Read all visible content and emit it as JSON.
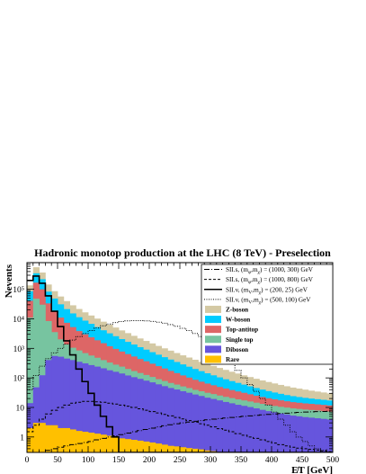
{
  "chart_data": {
    "type": "area",
    "title": "Hadronic monotop production at the LHC (8 TeV) - Preselection",
    "xlabel": "E̸T [GeV]",
    "ylabel": "Nevents",
    "xlim": [
      0,
      500
    ],
    "ylim": [
      0.3,
      800000
    ],
    "yscale": "log",
    "x_ticks": [
      "0",
      "50",
      "100",
      "150",
      "200",
      "250",
      "300",
      "350",
      "400",
      "450",
      "500"
    ],
    "y_ticks": [
      "1",
      "10",
      "10²",
      "10³",
      "10⁴",
      "10⁵"
    ],
    "bin_edges": [
      0,
      10,
      20,
      30,
      40,
      50,
      60,
      70,
      80,
      90,
      100,
      110,
      120,
      130,
      140,
      150,
      160,
      170,
      180,
      190,
      200,
      210,
      220,
      230,
      240,
      250,
      260,
      270,
      280,
      290,
      300,
      310,
      320,
      330,
      340,
      350,
      360,
      370,
      380,
      390,
      400,
      410,
      420,
      430,
      440,
      450,
      460,
      470,
      480,
      490,
      500
    ],
    "stacked_series": [
      {
        "name": "Rare",
        "color": "#ffc000",
        "values": [
          2,
          3,
          3,
          2.5,
          2.5,
          2,
          2,
          1.8,
          1.6,
          1.5,
          1.4,
          1.3,
          1.2,
          1.1,
          1.0,
          0.9,
          0.85,
          0.8,
          0.75,
          0.7,
          0.65,
          0.6,
          0.55,
          0.5,
          0.48,
          0.45,
          0.42,
          0.4,
          0.38,
          0.35,
          0.33,
          0.31,
          0.3,
          0.3,
          0.3,
          0.3,
          0.3,
          0.3,
          0.3,
          0.3,
          0.3,
          0.3,
          0.3,
          0.3,
          0.3,
          0.3,
          0.3,
          0.3,
          0.3,
          0.3
        ]
      },
      {
        "name": "Diboson",
        "color": "#6655dd",
        "values": [
          12,
          45,
          120,
          400,
          550,
          520,
          450,
          400,
          350,
          310,
          270,
          240,
          210,
          180,
          160,
          140,
          120,
          105,
          92,
          80,
          70,
          60,
          52,
          45,
          40,
          35,
          31,
          27,
          24,
          21,
          19,
          17,
          15,
          13.5,
          12,
          11,
          10,
          9,
          8,
          7.2,
          6.5,
          6,
          5.5,
          5,
          4.7,
          4.4,
          4.2,
          4,
          3.8,
          3.6
        ]
      },
      {
        "name": "Single top",
        "color": "#77c4a0",
        "values": [
          11000,
          48000,
          30000,
          8000,
          3000,
          1500,
          900,
          650,
          500,
          380,
          300,
          240,
          190,
          150,
          120,
          100,
          80,
          65,
          54,
          45,
          37,
          30,
          26,
          22,
          19,
          16,
          14,
          12,
          11,
          10,
          9,
          8,
          7.5,
          7,
          6.5,
          6,
          5.6,
          5.2,
          4.9,
          4.6,
          4.4,
          4.2,
          4.1,
          4,
          3.9,
          3.8,
          3.7,
          3.6,
          3.5,
          3.4
        ]
      },
      {
        "name": "Top-antitop",
        "color": "#dd6666",
        "values": [
          30000,
          120000,
          70000,
          25000,
          15000,
          9000,
          6000,
          4200,
          3000,
          2300,
          1800,
          1400,
          1100,
          850,
          680,
          540,
          440,
          360,
          290,
          240,
          195,
          160,
          130,
          105,
          86,
          70,
          57,
          47,
          39,
          33,
          28,
          24,
          21,
          18,
          16,
          14,
          12,
          10.5,
          9.4,
          8.4,
          7.6,
          6.9,
          6.3,
          5.8,
          5.5,
          5.2,
          5,
          4.8,
          4.6,
          4.4
        ]
      },
      {
        "name": "W-boson",
        "color": "#00ccff",
        "values": [
          45000,
          180000,
          120000,
          50000,
          30000,
          20000,
          14000,
          10000,
          7500,
          5700,
          4400,
          3400,
          2600,
          2050,
          1620,
          1280,
          1020,
          820,
          660,
          540,
          440,
          360,
          295,
          245,
          200,
          165,
          137,
          114,
          95,
          79,
          66,
          55,
          46,
          39,
          33,
          28,
          24,
          20.5,
          17.6,
          15.2,
          13.2,
          11.5,
          10,
          9,
          8.1,
          7.4,
          6.8,
          6.3,
          5.9,
          5.5
        ]
      },
      {
        "name": "Z-boson",
        "color": "#d4c9a4",
        "values": [
          50000,
          210000,
          150000,
          62000,
          38000,
          26000,
          18500,
          13500,
          10200,
          7900,
          6200,
          4900,
          3900,
          3100,
          2500,
          2000,
          1620,
          1310,
          1070,
          880,
          730,
          600,
          500,
          420,
          350,
          295,
          250,
          212,
          180,
          154,
          132,
          113,
          97,
          84,
          73,
          63,
          55,
          48,
          42,
          37,
          33,
          29,
          26,
          23,
          21,
          19,
          17,
          15.5,
          14,
          12.5
        ]
      }
    ],
    "signal_series": [
      {
        "name": "SII.s, (m_φ,m_χ) = (1000, 300) GeV",
        "style": "dashdot",
        "values": [
          0.3,
          0.3,
          0.3,
          0.35,
          0.4,
          0.45,
          0.5,
          0.55,
          0.6,
          0.65,
          0.7,
          0.8,
          0.9,
          1.0,
          1.1,
          1.2,
          1.35,
          1.5,
          1.65,
          1.8,
          2.0,
          2.2,
          2.4,
          2.6,
          2.8,
          3.0,
          3.2,
          3.4,
          3.6,
          3.8,
          4.0,
          4.2,
          4.4,
          4.6,
          4.8,
          5.0,
          5.2,
          5.4,
          5.6,
          5.8,
          6.0,
          6.2,
          6.4,
          6.6,
          6.8,
          7.0,
          7.1,
          7.2,
          7.3,
          7.4
        ]
      },
      {
        "name": "SII.s, (m_φ,m_χ) = (1000, 800) GeV",
        "style": "dashed",
        "values": [
          1.5,
          2.5,
          4,
          6,
          8,
          10,
          12,
          14,
          15,
          16,
          16,
          15.5,
          15,
          14,
          13,
          12,
          11,
          10,
          9,
          8,
          7.2,
          6.5,
          5.8,
          5.2,
          4.6,
          4.1,
          3.6,
          3.2,
          2.8,
          2.5,
          2.2,
          1.9,
          1.7,
          1.5,
          1.3,
          1.15,
          1.0,
          0.9,
          0.8,
          0.7,
          0.62,
          0.55,
          0.5,
          0.45,
          0.42,
          0.4,
          0.38,
          0.36,
          0.34,
          0.32
        ]
      },
      {
        "name": "SII.v, (m_V,m_χ) = (200, 25) GeV",
        "style": "solid",
        "values": [
          200000,
          280000,
          160000,
          60000,
          18000,
          5500,
          1800,
          600,
          200,
          75,
          30,
          12,
          5,
          2.2,
          1.0,
          0.3,
          0.3,
          0.3,
          0.3,
          0.3,
          0.3,
          0.3,
          0.3,
          0.3,
          0.3,
          0.3,
          0.3,
          0.3,
          0.3,
          0.3,
          0.3,
          0.3,
          0.3,
          0.3,
          0.3,
          0.3,
          0.3,
          0.3,
          0.3,
          0.3,
          0.3,
          0.3,
          0.3,
          0.3,
          0.3,
          0.3,
          0.3,
          0.3,
          0.3,
          0.3
        ]
      },
      {
        "name": "SII.v, (m_V,m_χ) = (500, 100) GeV",
        "style": "dotted",
        "values": [
          40,
          120,
          250,
          450,
          700,
          1000,
          1400,
          1900,
          2500,
          3200,
          4000,
          4900,
          5800,
          6700,
          7500,
          8100,
          8500,
          8700,
          8700,
          8500,
          8200,
          7700,
          7100,
          6400,
          5600,
          4800,
          4000,
          3200,
          2500,
          1800,
          1200,
          800,
          500,
          300,
          180,
          100,
          60,
          35,
          20,
          12,
          7,
          4,
          2.5,
          1.5,
          1,
          0.7,
          0.5,
          0.4,
          0.35,
          0.3
        ]
      }
    ],
    "legend": {
      "placement": "top-right",
      "entries": [
        {
          "label": "SII.s, (m",
          "sub1": "φ",
          "mid": ",m",
          "sub2": "χ",
          "tail": ") = (1000, 300) GeV",
          "kind": "line",
          "dash": "6,2,1,2"
        },
        {
          "label": "SII.s, (m",
          "sub1": "φ",
          "mid": ",m",
          "sub2": "χ",
          "tail": ") = (1000, 800) GeV",
          "kind": "line",
          "dash": "3,2"
        },
        {
          "label": "SII.v, (m",
          "sub1": "V",
          "mid": ",m",
          "sub2": "χ",
          "tail": ") = (200, 25) GeV",
          "kind": "line",
          "dash": ""
        },
        {
          "label": "SII.v, (m",
          "sub1": "V",
          "mid": ",m",
          "sub2": "χ",
          "tail": ") = (500, 100) GeV",
          "kind": "line",
          "dash": "1,1.5"
        },
        {
          "label": "Z-boson",
          "kind": "box",
          "color": "#d4c9a4"
        },
        {
          "label": "W-boson",
          "kind": "box",
          "color": "#00ccff"
        },
        {
          "label": "Top-antitop",
          "kind": "box",
          "color": "#dd6666"
        },
        {
          "label": "Single top",
          "kind": "box",
          "color": "#77c4a0"
        },
        {
          "label": "Diboson",
          "kind": "box",
          "color": "#6655dd"
        },
        {
          "label": "Rare",
          "kind": "box",
          "color": "#ffc000"
        }
      ]
    }
  }
}
